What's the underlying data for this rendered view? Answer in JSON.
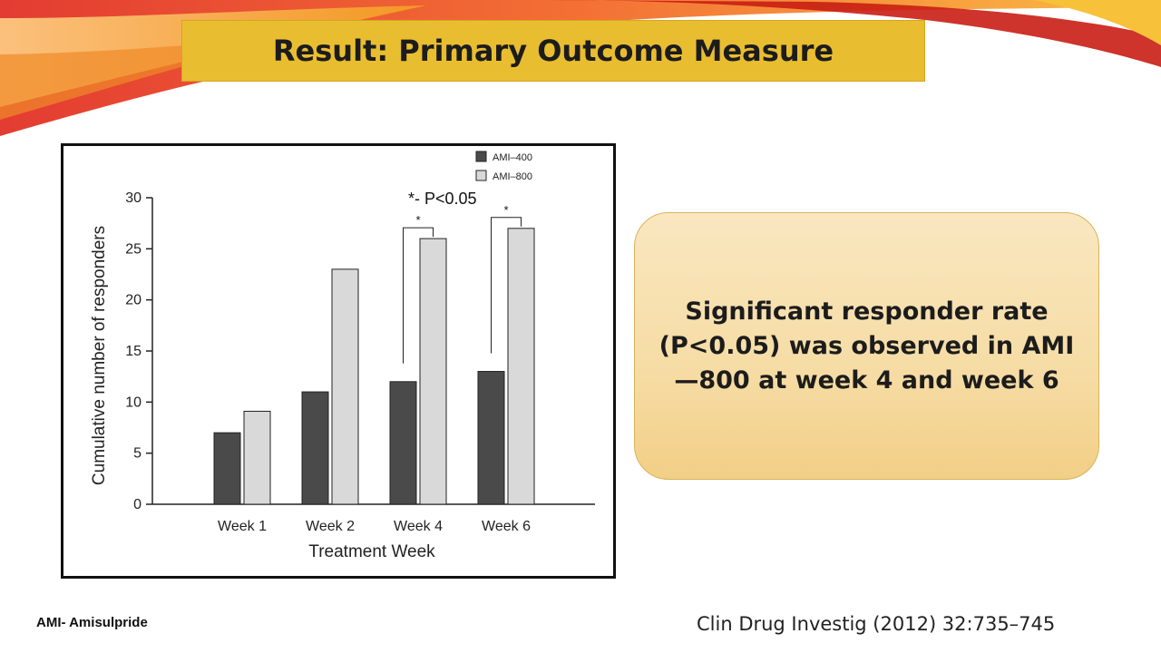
{
  "slide": {
    "title": "Result: Primary Outcome Measure",
    "callout": "Significant responder rate (P<0.05) was observed in AMI—800 at week 4 and week 6",
    "footnote": "AMI- Amisulpride",
    "citation": "Clin Drug Investig (2012) 32:735–745",
    "colors": {
      "title_bg": "#e9bd30",
      "callout_bg": "#f6dca4"
    }
  },
  "chart_data": {
    "type": "bar",
    "categories": [
      "Week 1",
      "Week 2",
      "Week 4",
      "Week 6"
    ],
    "series": [
      {
        "name": "AMI–400",
        "values": [
          7,
          11,
          12,
          13
        ],
        "color": "#4a4a4a"
      },
      {
        "name": "AMI–800",
        "values": [
          9.1,
          23,
          26,
          27
        ],
        "color": "#d9d9d9"
      }
    ],
    "xlabel": "Treatment Week",
    "ylabel": "Cumulative number of responders",
    "ylim": [
      0,
      30
    ],
    "yticks": [
      0,
      5,
      10,
      15,
      20,
      25,
      30
    ],
    "legend_position": "top-right",
    "significance_note": "*- P<0.05",
    "significance_marks": [
      {
        "category": "Week 4",
        "label": "*"
      },
      {
        "category": "Week 6",
        "label": "*"
      }
    ]
  }
}
